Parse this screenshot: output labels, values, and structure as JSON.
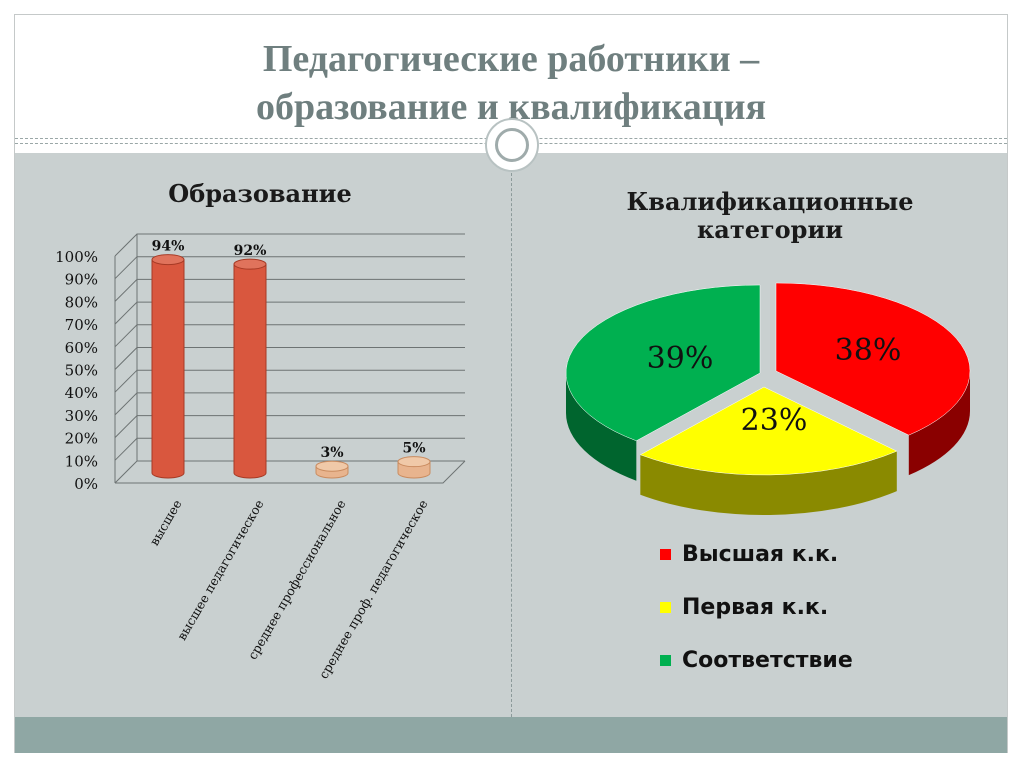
{
  "slide": {
    "title_line1": "Педагогические работники –",
    "title_line2": "образование и квалификация"
  },
  "chart_data": [
    {
      "type": "bar",
      "title": "Образование",
      "categories": [
        "высшее",
        "высшее педагогическое",
        "среднее профессиональное",
        "среднее проф. педагогическое"
      ],
      "values": [
        94,
        92,
        3,
        5
      ],
      "data_labels": [
        "94%",
        "92%",
        "3%",
        "5%"
      ],
      "ylim": [
        0,
        100
      ],
      "yticks": [
        "0%",
        "10%",
        "20%",
        "30%",
        "40%",
        "50%",
        "60%",
        "70%",
        "80%",
        "90%",
        "100%"
      ],
      "grid": true,
      "colors": {
        "bar": "#d9573e",
        "bar_small": "#e8b48e"
      }
    },
    {
      "type": "pie",
      "title": "Квалификационные категории",
      "labels": [
        "Высшая к.к.",
        "Первая к.к.",
        "Соответствие"
      ],
      "values": [
        38,
        23,
        39
      ],
      "data_labels": [
        "38%",
        "23%",
        "39%"
      ],
      "colors": [
        "#ff0000",
        "#ffff00",
        "#00b050"
      ],
      "legend_position": "bottom"
    }
  ]
}
